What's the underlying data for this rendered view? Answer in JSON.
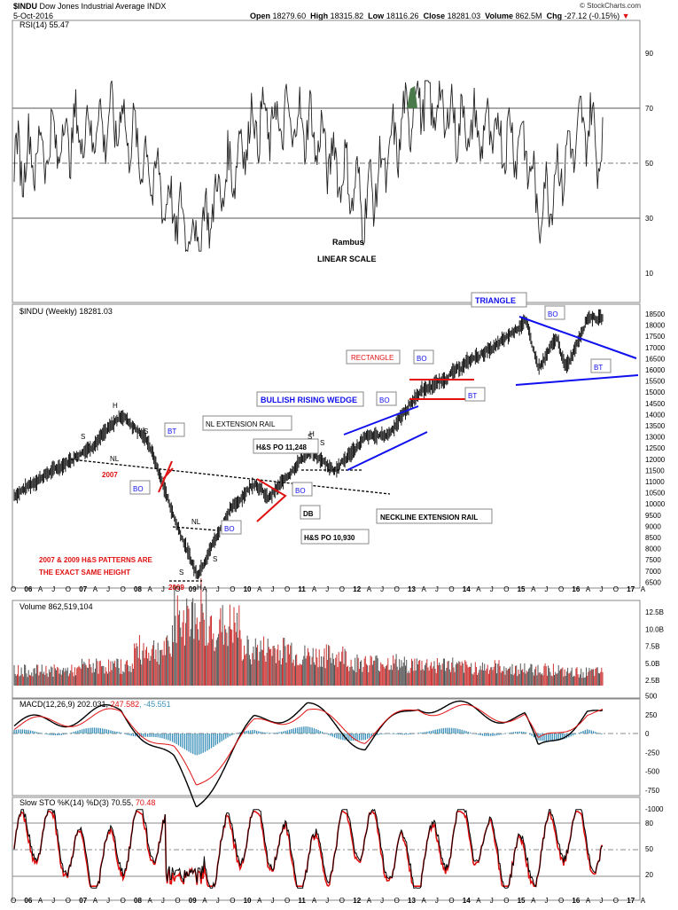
{
  "header": {
    "symbol": "$INDU",
    "name": "Dow Jones Industrial Average INDX",
    "date": "5-Oct-2016",
    "open_label": "Open",
    "open": "18279.60",
    "high_label": "High",
    "high": "18315.82",
    "low_label": "Low",
    "low": "18116.26",
    "close_label": "Close",
    "close": "18281.03",
    "volume_label": "Volume",
    "volume": "862.5M",
    "chg_label": "Chg",
    "chg": "-27.12 (-0.15%)",
    "credit": "© StockCharts.com"
  },
  "colors": {
    "price": "#000000",
    "blue": "#1010ee",
    "red": "#e01010",
    "volume_up": "#555555",
    "volume_down": "#cc3333",
    "macd_hist": "#3a8fb8",
    "rsi_fill": "#4a7a4a"
  },
  "panels": {
    "rsi": {
      "label": "RSI(14) 55.47",
      "ticks": [
        "90",
        "70",
        "50",
        "30",
        "10"
      ]
    },
    "price": {
      "label": "$INDU (Weekly) 18281.03",
      "ticks": [
        "18500",
        "18000",
        "17500",
        "17000",
        "16500",
        "16000",
        "15500",
        "15000",
        "14500",
        "14000",
        "13500",
        "13000",
        "12500",
        "12000",
        "11500",
        "11000",
        "10500",
        "10000",
        "9500",
        "9000",
        "8500",
        "8000",
        "7500",
        "7000",
        "6500"
      ]
    },
    "volume": {
      "label": "Volume 862,519,104",
      "ticks": [
        "12.5B",
        "10.0B",
        "7.5B",
        "5.0B",
        "2.5B"
      ]
    },
    "macd": {
      "label_main": "MACD(12,26,9) 202.031,",
      "label_signal": "247.582",
      "label_hist": ", -45.551",
      "ticks": [
        "500",
        "250",
        "0",
        "-250",
        "-500",
        "-750",
        "-1000"
      ]
    },
    "sto": {
      "label_main": "Slow STO %K(14) %D(3) 70.55,",
      "label_d": "70.48",
      "ticks": [
        "80",
        "50",
        "20"
      ]
    }
  },
  "xaxis": [
    "O",
    "06",
    "A",
    "J",
    "O",
    "07",
    "A",
    "J",
    "O",
    "08",
    "A",
    "J",
    "O",
    "09",
    "A",
    "J",
    "O",
    "10",
    "A",
    "J",
    "O",
    "11",
    "A",
    "J",
    "O",
    "12",
    "A",
    "J",
    "O",
    "13",
    "A",
    "J",
    "O",
    "14",
    "A",
    "J",
    "O",
    "15",
    "A",
    "J",
    "O",
    "16",
    "A",
    "J",
    "O",
    "17",
    "A"
  ],
  "annotations": {
    "rambus": "Rambus",
    "linear": "LINEAR SCALE",
    "triangle": "TRIANGLE",
    "rectangle": "RECTANGLE",
    "wedge": "BULLISH RISING WEDGE",
    "nl_rail": "NL EXTENSION RAIL",
    "neckline_rail": "NECKLINE EXTENSION RAIL",
    "hs_po_1": "H&S PO 11,248",
    "hs_po_2": "H&S PO 10,930",
    "db": "DB",
    "bo": "BO",
    "bt": "BT",
    "nl": "NL",
    "s": "S",
    "h": "H",
    "y2007": "2007",
    "y2009": "2009",
    "patterns_1": "2007 & 2009 H&S PATTERNS ARE",
    "patterns_2": "THE EXACT SAME HEIGHT"
  },
  "chart_data": [
    {
      "type": "line",
      "title": "$INDU (Weekly) 18281.03",
      "x": [
        "2005-10",
        "2006-04",
        "2006-10",
        "2007-04",
        "2007-10",
        "2008-04",
        "2008-10",
        "2009-03",
        "2009-10",
        "2010-04",
        "2010-07",
        "2011-04",
        "2011-10",
        "2012-05",
        "2012-10",
        "2013-05",
        "2013-10",
        "2014-05",
        "2014-10",
        "2015-05",
        "2015-08",
        "2015-12",
        "2016-02",
        "2016-07",
        "2016-10"
      ],
      "series": [
        {
          "values": [
            10400,
            11200,
            11900,
            12700,
            14000,
            12800,
            9300,
            6800,
            9600,
            11000,
            10200,
            12400,
            11500,
            13000,
            13100,
            15000,
            15500,
            16500,
            17000,
            18200,
            16000,
            17500,
            16000,
            18400,
            18281
          ]
        }
      ],
      "ylim": [
        6500,
        18800
      ]
    },
    {
      "type": "line",
      "title": "RSI(14) 55.47",
      "x": [
        "2005-10",
        "2006-10",
        "2007-10",
        "2008-10",
        "2009-03",
        "2010-04",
        "2011-04",
        "2012-05",
        "2013-05",
        "2014-05",
        "2015-05",
        "2015-08",
        "2016-07",
        "2016-10"
      ],
      "series": [
        {
          "values": [
            50,
            60,
            66,
            32,
            22,
            65,
            64,
            35,
            75,
            62,
            58,
            32,
            66,
            55
          ]
        }
      ],
      "ylim": [
        0,
        100
      ]
    },
    {
      "type": "bar",
      "title": "Volume 862,519,104",
      "categories": [
        "2006",
        "2007",
        "2008",
        "2009",
        "2010",
        "2011",
        "2012",
        "2013",
        "2014",
        "2015",
        "2016"
      ],
      "values": [
        2.3,
        3.0,
        5.5,
        9.0,
        5.5,
        4.5,
        3.5,
        3.2,
        2.8,
        2.5,
        2.0
      ],
      "ylabel": "",
      "ylim": [
        0,
        13.5
      ]
    },
    {
      "type": "line",
      "title": "MACD(12,26,9) 202.031, 247.582, -45.551",
      "x": [
        "2005-10",
        "2006-10",
        "2007-10",
        "2008-10",
        "2009-03",
        "2010-04",
        "2011-04",
        "2012-05",
        "2013-05",
        "2014-05",
        "2015-05",
        "2015-08",
        "2016-07",
        "2016-10"
      ],
      "series": [
        {
          "values": [
            100,
            200,
            300,
            -400,
            -950,
            150,
            350,
            -150,
            400,
            300,
            200,
            -250,
            300,
            202
          ]
        },
        {
          "values": [
            90,
            180,
            250,
            -250,
            -700,
            100,
            300,
            -50,
            350,
            280,
            220,
            -150,
            280,
            248
          ]
        }
      ],
      "ylim": [
        -1000,
        550
      ]
    },
    {
      "type": "line",
      "title": "Slow STO %K(14) %D(3) 70.55, 70.48",
      "x": [
        "2005-10",
        "2006-10",
        "2007-10",
        "2008-10",
        "2009-03",
        "2010-04",
        "2011-04",
        "2012-05",
        "2013-05",
        "2014-05",
        "2015-05",
        "2015-08",
        "2016-07",
        "2016-10"
      ],
      "series": [
        {
          "values": [
            60,
            90,
            85,
            10,
            8,
            90,
            88,
            15,
            92,
            85,
            80,
            8,
            90,
            71
          ]
        },
        {
          "values": [
            58,
            88,
            84,
            14,
            12,
            88,
            86,
            18,
            90,
            84,
            78,
            12,
            88,
            70
          ]
        }
      ],
      "ylim": [
        0,
        100
      ]
    }
  ]
}
